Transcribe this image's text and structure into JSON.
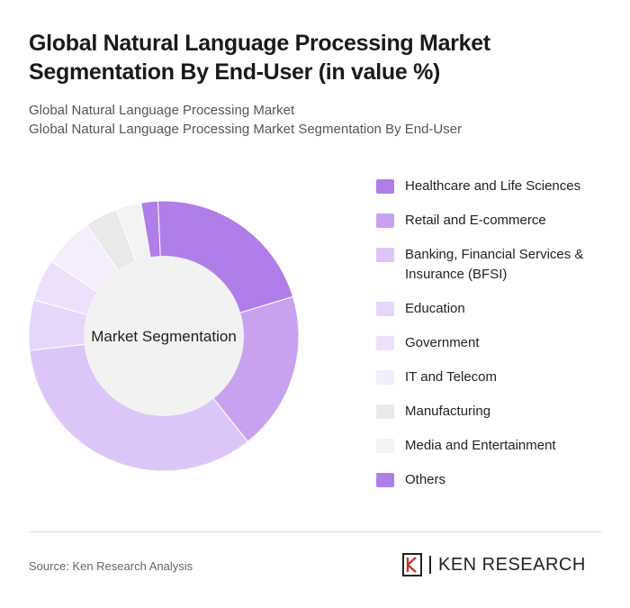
{
  "header": {
    "title": "Global Natural Language Processing Market Segmentation By End-User (in value %)",
    "subtitle_1": "Global Natural Language Processing Market",
    "subtitle_2": "Global Natural Language Processing Market Segmentation By End-User"
  },
  "chart_data": {
    "type": "pie",
    "variant": "donut",
    "center_label": "Market Segmentation",
    "legend_position": "right",
    "slices": [
      {
        "label": "Healthcare and Life Sciences",
        "value": 21,
        "color": "#b07ee8"
      },
      {
        "label": "Retail and E-commerce",
        "value": 19,
        "color": "#c8a2ef"
      },
      {
        "label": "Banking, Financial Services & Insurance (BFSI)",
        "value": 34,
        "color": "#dcc6f7"
      },
      {
        "label": "Education",
        "value": 6,
        "color": "#e6d6f9"
      },
      {
        "label": "Government",
        "value": 5,
        "color": "#ece0fa"
      },
      {
        "label": "IT and Telecom",
        "value": 6,
        "color": "#f3edfc"
      },
      {
        "label": "Manufacturing",
        "value": 4,
        "color": "#e9e9e9"
      },
      {
        "label": "Media and Entertainment",
        "value": 3,
        "color": "#f3f3f3"
      },
      {
        "label": "Others",
        "value": 2,
        "color": "#b07ee8"
      }
    ]
  },
  "footer": {
    "source": "Source: Ken Research Analysis",
    "logo_text": "KEN RESEARCH"
  }
}
